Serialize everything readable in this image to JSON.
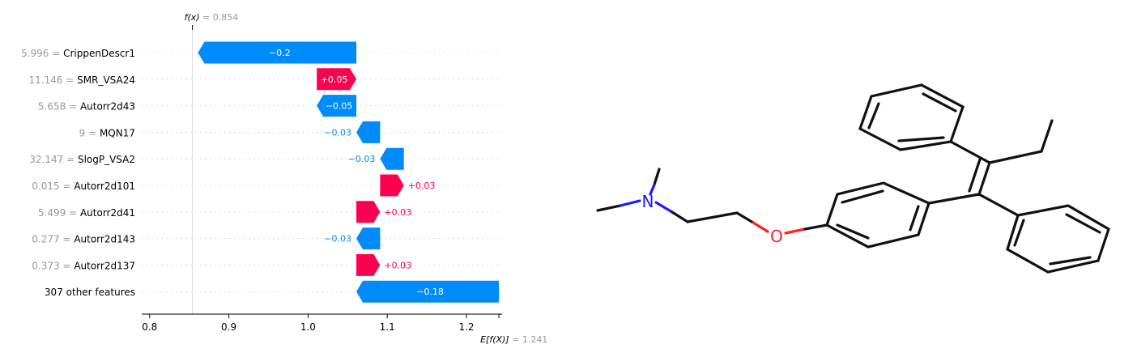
{
  "chart_data": {
    "type": "waterfall",
    "title": "",
    "fx_label": "f(x)",
    "fx_value": 0.854,
    "fx_value_text": "0.854",
    "ex_label": "E[f(X)]",
    "ex_value": 1.241,
    "ex_value_text": "1.241",
    "xlim": [
      0.79,
      1.245
    ],
    "xticks": [
      0.8,
      0.9,
      1.0,
      1.1,
      1.2
    ],
    "xtick_labels": [
      "0.8",
      "0.9",
      "1.0",
      "1.1",
      "1.2"
    ],
    "colors": {
      "positive": "#ff0051",
      "negative": "#008bfb",
      "muted": "#999999",
      "text": "#000000"
    },
    "rows": [
      {
        "value_text": "5.996",
        "feature": "CrippenDescr1",
        "contribution": -0.2,
        "contribution_text": "−0.2"
      },
      {
        "value_text": "11.146",
        "feature": "SMR_VSA24",
        "contribution": 0.05,
        "contribution_text": "+0.05"
      },
      {
        "value_text": "5.658",
        "feature": "Autorr2d43",
        "contribution": -0.05,
        "contribution_text": "−0.05"
      },
      {
        "value_text": "9",
        "feature": "MQN17",
        "contribution": -0.03,
        "contribution_text": "−0.03"
      },
      {
        "value_text": "32.147",
        "feature": "SlogP_VSA2",
        "contribution": -0.03,
        "contribution_text": "−0.03"
      },
      {
        "value_text": "0.015",
        "feature": "Autorr2d101",
        "contribution": 0.03,
        "contribution_text": "+0.03"
      },
      {
        "value_text": "5.499",
        "feature": "Autorr2d41",
        "contribution": 0.03,
        "contribution_text": "+0.03"
      },
      {
        "value_text": "0.277",
        "feature": "Autorr2d143",
        "contribution": -0.03,
        "contribution_text": "−0.03"
      },
      {
        "value_text": "0.373",
        "feature": "Autorr2d137",
        "contribution": 0.03,
        "contribution_text": "+0.03"
      },
      {
        "value_text": "",
        "feature": "307 other features",
        "contribution": -0.18,
        "contribution_text": "−0.18"
      }
    ]
  },
  "molecule": {
    "atoms": {
      "N": "N",
      "O": "O"
    },
    "colors": {
      "bond": "#111111",
      "N": "#1a1aff",
      "O": "#ff2020"
    }
  }
}
